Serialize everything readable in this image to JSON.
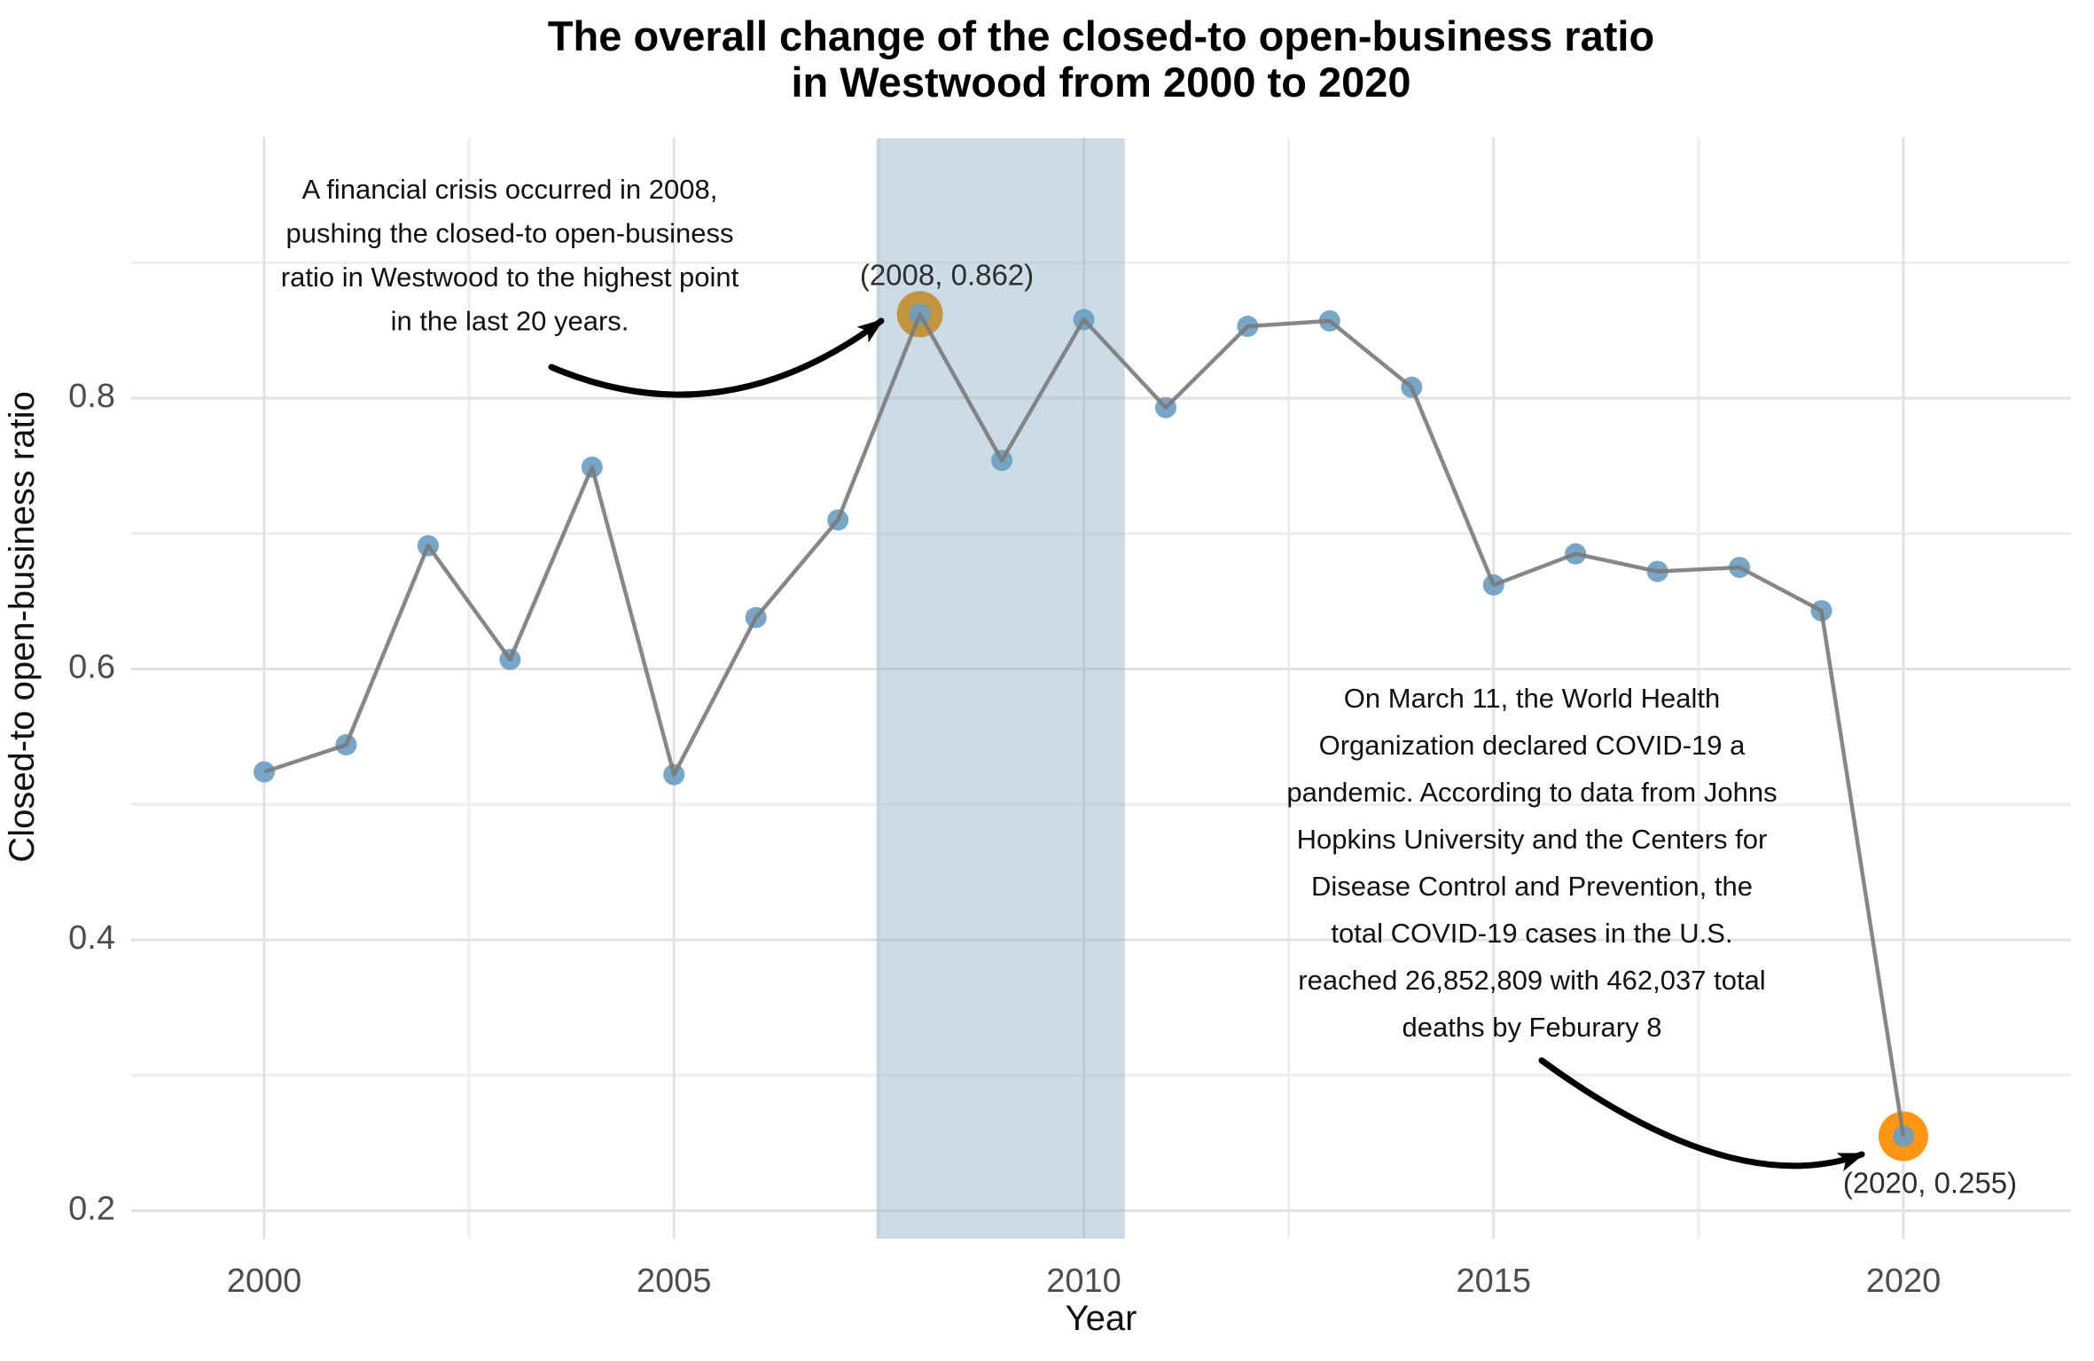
{
  "chart_data": {
    "type": "line",
    "title_lines": [
      "The overall change of the closed-to open-business ratio",
      "in Westwood from 2000 to 2020"
    ],
    "xlabel": "Year",
    "ylabel": "Closed-to open-business ratio",
    "x": [
      2000,
      2001,
      2002,
      2003,
      2004,
      2005,
      2006,
      2007,
      2008,
      2009,
      2010,
      2011,
      2012,
      2013,
      2014,
      2015,
      2016,
      2017,
      2018,
      2019,
      2020
    ],
    "y": [
      0.524,
      0.544,
      0.691,
      0.607,
      0.749,
      0.522,
      0.638,
      0.71,
      0.862,
      0.754,
      0.858,
      0.793,
      0.853,
      0.857,
      0.808,
      0.662,
      0.685,
      0.672,
      0.675,
      0.643,
      0.255
    ],
    "xticks": [
      2000,
      2005,
      2010,
      2015,
      2020
    ],
    "yticks": [
      0.2,
      0.4,
      0.6,
      0.8
    ],
    "minor_xticks": [
      2002.5,
      2007.5,
      2012.5,
      2017.5
    ],
    "minor_yticks": [
      0.3,
      0.5,
      0.7,
      0.9
    ],
    "xlim": [
      1998.4,
      2022.0
    ],
    "ylim": [
      0.18,
      0.99
    ],
    "grid": true,
    "legend": false,
    "shaded_band": {
      "x_start": 2007.47,
      "x_end": 2010.5,
      "color": "rgba(141,177,199,0.45)"
    },
    "highlights": [
      {
        "x": 2008,
        "y": 0.862,
        "label": "(2008, 0.862)",
        "ring_color": "#c3953e"
      },
      {
        "x": 2020,
        "y": 0.255,
        "label": "(2020, 0.255)",
        "ring_color": "#fc9613"
      }
    ],
    "annotations": [
      {
        "lines": [
          "A financial crisis occurred in 2008,",
          "pushing the closed-to open-business",
          "ratio in Westwood to the highest point",
          "in the last 20 years."
        ]
      },
      {
        "lines": [
          "On March 11, the World Health",
          "Organization declared COVID-19 a",
          "pandemic. According to data from Johns",
          "Hopkins University and the Centers for",
          "Disease Control and Prevention, the",
          "total COVID-19 cases in the U.S.",
          "reached 26,852,809 with 462,037 total",
          "deaths by Feburary 8"
        ]
      }
    ],
    "colors": {
      "point": "#6d9ec2",
      "line": "#7a7a7a",
      "grid_major": "#e2e2e2",
      "grid_minor": "#eeeeee",
      "tick_label": "#4d4d4d",
      "arrow": "#000000",
      "band": "#ccdce6"
    }
  }
}
